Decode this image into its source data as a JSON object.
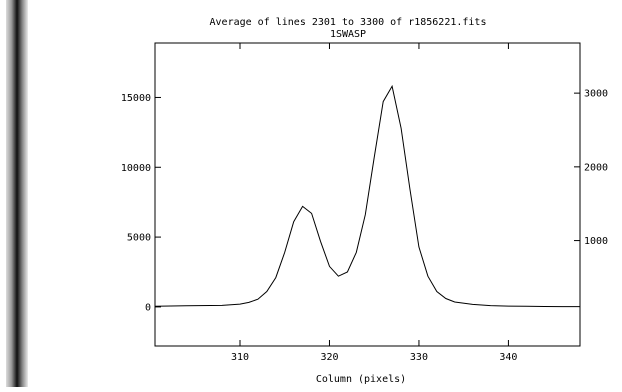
{
  "title": "Average of lines 2301 to 3300 of r1856221.fits",
  "subtitle": "1SWASP",
  "xlabel": "Column (pixels)",
  "colors": {
    "line": "#000000",
    "axes": "#000000",
    "background": "#ffffff",
    "stripe_dark": "#111111",
    "stripe_light": "#d8d8d8"
  },
  "chart_data": {
    "type": "line",
    "title": "Average of lines 2301 to 3300 of r1856221.fits",
    "subtitle": "1SWASP",
    "xlabel": "Column (pixels)",
    "ylabel": "",
    "xlim": [
      300.5,
      348
    ],
    "ylim": [
      -2800,
      18900
    ],
    "x_ticks": [
      310,
      320,
      330,
      340
    ],
    "y_ticks_left": [
      0,
      5000,
      10000,
      15000
    ],
    "y2lim": [
      -430,
      3680
    ],
    "y_ticks_right": [
      1000,
      2000,
      3000
    ],
    "grid": false,
    "series": [
      {
        "x": [
          300.5,
          304,
          308,
          310,
          311,
          312,
          313,
          314,
          315,
          316,
          317,
          318,
          319,
          320,
          321,
          322,
          323,
          324,
          325,
          326,
          327,
          328,
          329,
          330,
          331,
          332,
          333,
          334,
          336,
          338,
          340,
          342,
          344,
          346,
          348
        ],
        "y": [
          50,
          80,
          110,
          200,
          320,
          550,
          1100,
          2100,
          3900,
          6100,
          7200,
          6700,
          4700,
          2900,
          2200,
          2500,
          3900,
          6600,
          10700,
          14700,
          15800,
          12800,
          8400,
          4300,
          2200,
          1100,
          600,
          350,
          180,
          90,
          60,
          40,
          30,
          20,
          20
        ]
      }
    ]
  }
}
